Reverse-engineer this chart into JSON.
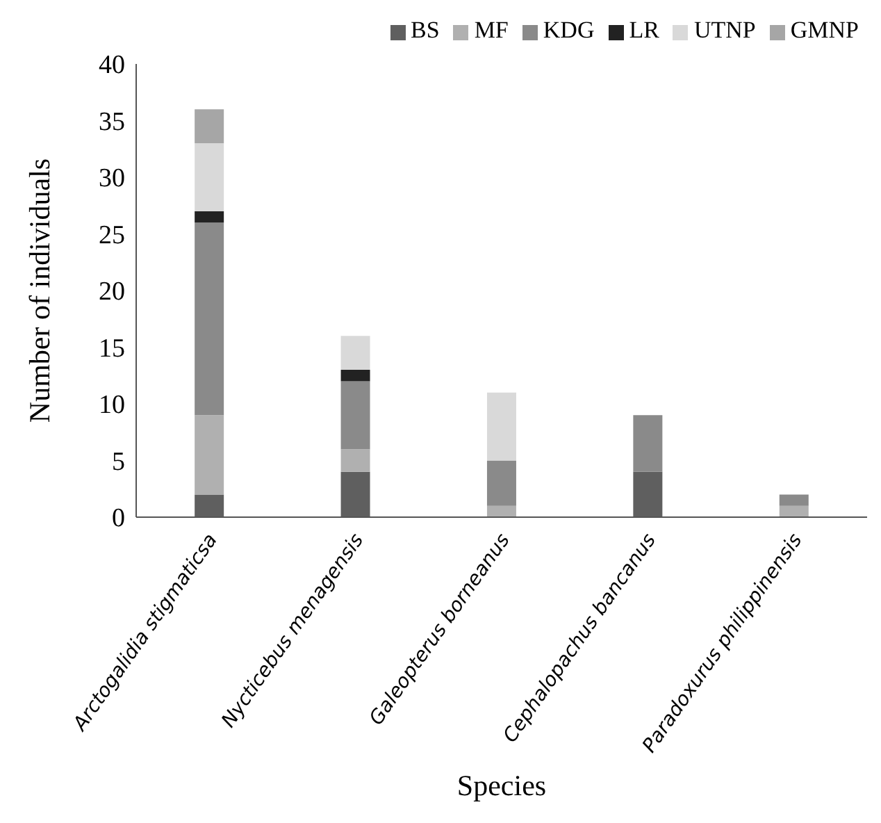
{
  "chart_data": {
    "type": "bar",
    "stacked": true,
    "xlabel": "Species",
    "ylabel": "Number of individuals",
    "categories": [
      "Arctogalidia stigmaticsa",
      "Nycticebus menagensis",
      "Galeopterus borneanus",
      "Cephalopachus bancanus",
      "Paradoxurus philippinensis"
    ],
    "series": [
      {
        "name": "BS",
        "color": "#5f5f5f",
        "values": [
          2,
          4,
          0,
          4,
          0
        ]
      },
      {
        "name": "MF",
        "color": "#b0b0b0",
        "values": [
          7,
          2,
          1,
          0,
          1
        ]
      },
      {
        "name": "KDG",
        "color": "#8a8a8a",
        "values": [
          17,
          6,
          4,
          5,
          1
        ]
      },
      {
        "name": "LR",
        "color": "#222222",
        "values": [
          1,
          1,
          0,
          0,
          0
        ]
      },
      {
        "name": "UTNP",
        "color": "#d9d9d9",
        "values": [
          6,
          3,
          6,
          0,
          0
        ]
      },
      {
        "name": "GMNP",
        "color": "#a6a6a6",
        "values": [
          3,
          0,
          0,
          0,
          0
        ]
      }
    ],
    "ylim": [
      0,
      40
    ],
    "yticks": [
      0,
      5,
      10,
      15,
      20,
      25,
      30,
      35,
      40
    ],
    "grid": false,
    "legend": "top right"
  }
}
